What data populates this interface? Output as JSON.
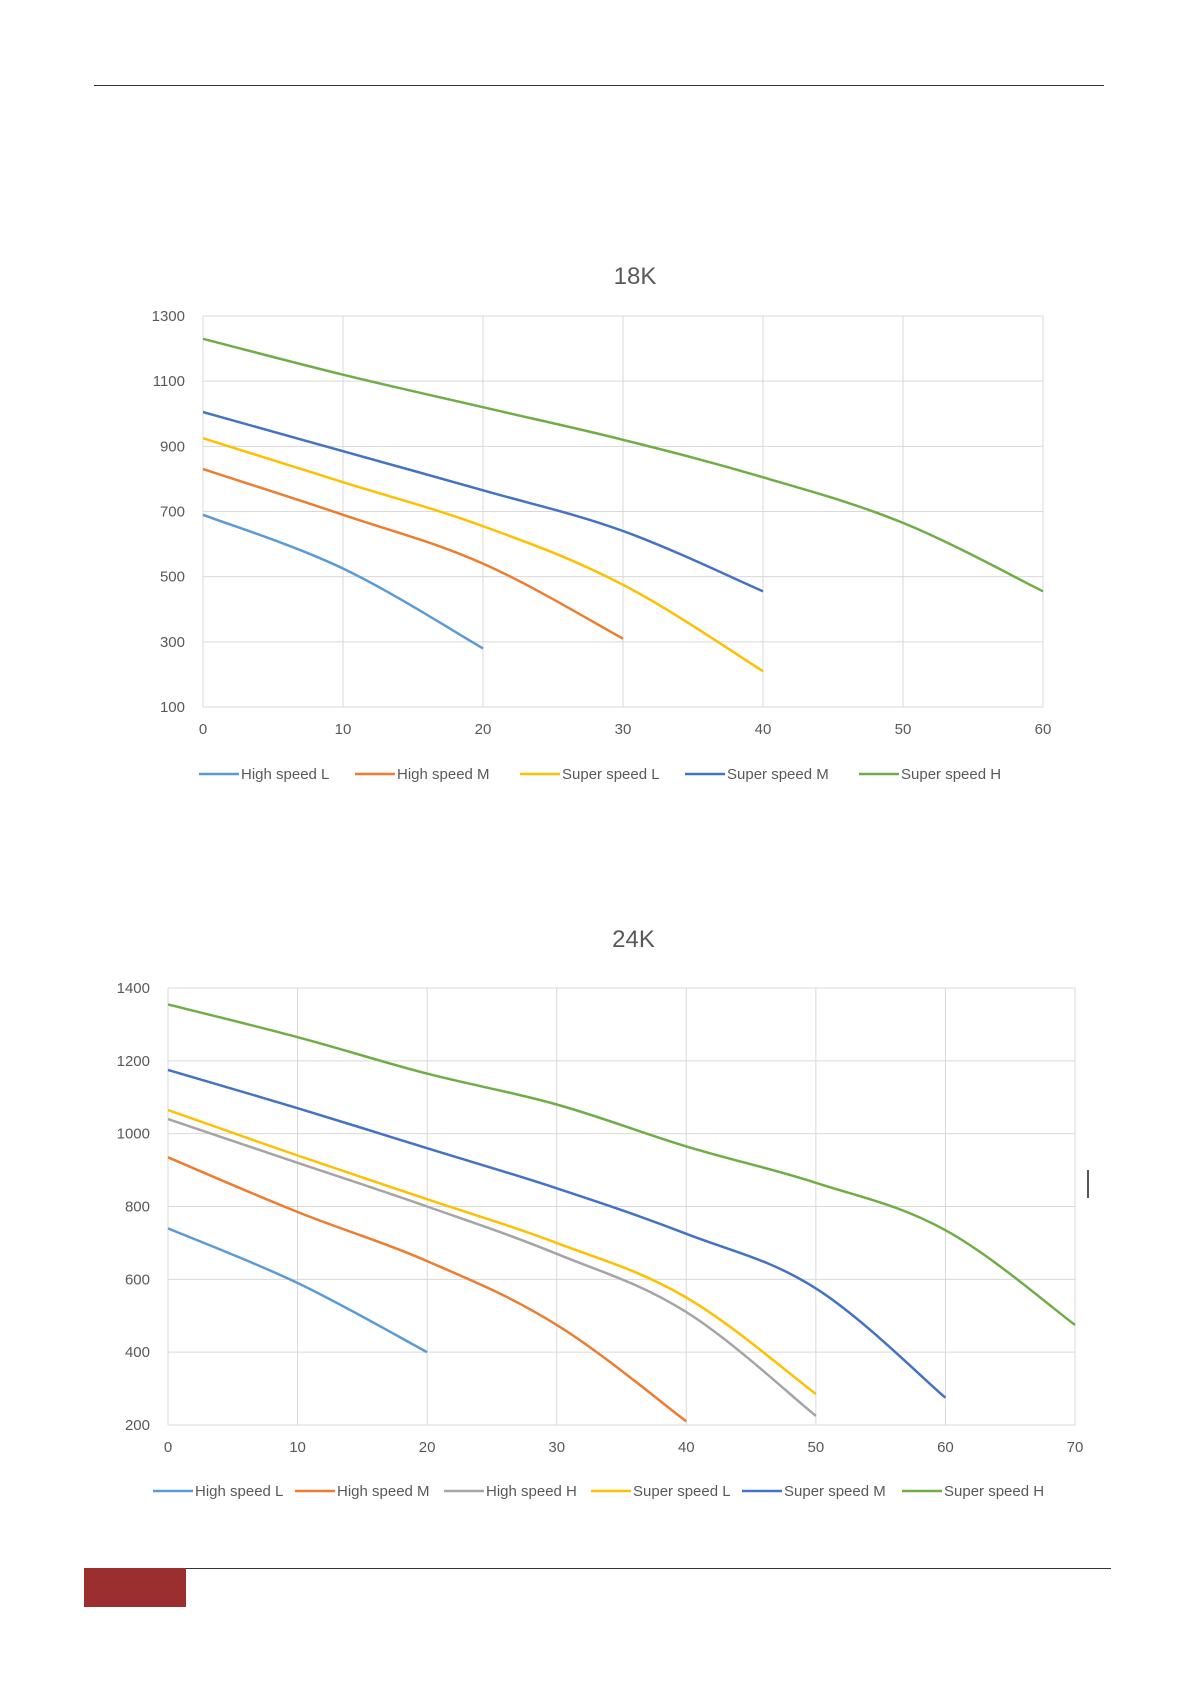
{
  "colors": {
    "High speed L": "#5b9bd5",
    "High speed M": "#ed7d31",
    "High speed H": "#a5a5a5",
    "Super speed L": "#ffc000",
    "Super speed M": "#4472c4",
    "Super speed H": "#70ad47",
    "footer_block": "#9b2f2f",
    "grid": "#d9d9d9",
    "text": "#595959"
  },
  "chart_data": [
    {
      "type": "line",
      "title": "18K",
      "xlabel": "",
      "ylabel": "",
      "xlim": [
        0,
        60
      ],
      "ylim": [
        100,
        1300
      ],
      "x_ticks": [
        "0",
        "10",
        "20",
        "30",
        "40",
        "50",
        "60"
      ],
      "y_ticks": [
        "100",
        "300",
        "500",
        "700",
        "900",
        "1100",
        "1300"
      ],
      "grid": true,
      "legend_position": "bottom",
      "series": [
        {
          "name": "High speed L",
          "x": [
            0,
            10,
            20
          ],
          "y": [
            690,
            525,
            280
          ]
        },
        {
          "name": "High speed M",
          "x": [
            0,
            10,
            20,
            30
          ],
          "y": [
            830,
            690,
            540,
            310
          ]
        },
        {
          "name": "Super speed L",
          "x": [
            0,
            10,
            20,
            30,
            40
          ],
          "y": [
            925,
            790,
            655,
            475,
            210
          ]
        },
        {
          "name": "Super speed M",
          "x": [
            0,
            10,
            20,
            30,
            40
          ],
          "y": [
            1005,
            885,
            765,
            640,
            455
          ]
        },
        {
          "name": "Super speed H",
          "x": [
            0,
            10,
            20,
            30,
            40,
            50,
            60
          ],
          "y": [
            1230,
            1120,
            1020,
            920,
            805,
            665,
            455
          ]
        }
      ]
    },
    {
      "type": "line",
      "title": "24K",
      "xlabel": "",
      "ylabel": "",
      "xlim": [
        0,
        70
      ],
      "ylim": [
        200,
        1400
      ],
      "x_ticks": [
        "0",
        "10",
        "20",
        "30",
        "40",
        "50",
        "60",
        "70"
      ],
      "y_ticks": [
        "200",
        "400",
        "600",
        "800",
        "1000",
        "1200",
        "1400"
      ],
      "grid": true,
      "legend_position": "bottom",
      "series": [
        {
          "name": "High speed L",
          "x": [
            0,
            10,
            20
          ],
          "y": [
            740,
            590,
            400
          ]
        },
        {
          "name": "High speed M",
          "x": [
            0,
            10,
            20,
            30,
            40
          ],
          "y": [
            935,
            785,
            650,
            475,
            210
          ]
        },
        {
          "name": "High speed H",
          "x": [
            0,
            10,
            20,
            30,
            40,
            50
          ],
          "y": [
            1040,
            920,
            800,
            670,
            510,
            225
          ]
        },
        {
          "name": "Super speed L",
          "x": [
            0,
            10,
            20,
            30,
            40,
            50
          ],
          "y": [
            1065,
            940,
            820,
            700,
            550,
            285
          ]
        },
        {
          "name": "Super speed M",
          "x": [
            0,
            10,
            20,
            30,
            40,
            50,
            60
          ],
          "y": [
            1175,
            1070,
            960,
            850,
            725,
            575,
            275
          ]
        },
        {
          "name": "Super speed H",
          "x": [
            0,
            10,
            20,
            30,
            40,
            50,
            60,
            70
          ],
          "y": [
            1355,
            1265,
            1165,
            1080,
            965,
            865,
            735,
            475
          ]
        }
      ]
    }
  ]
}
